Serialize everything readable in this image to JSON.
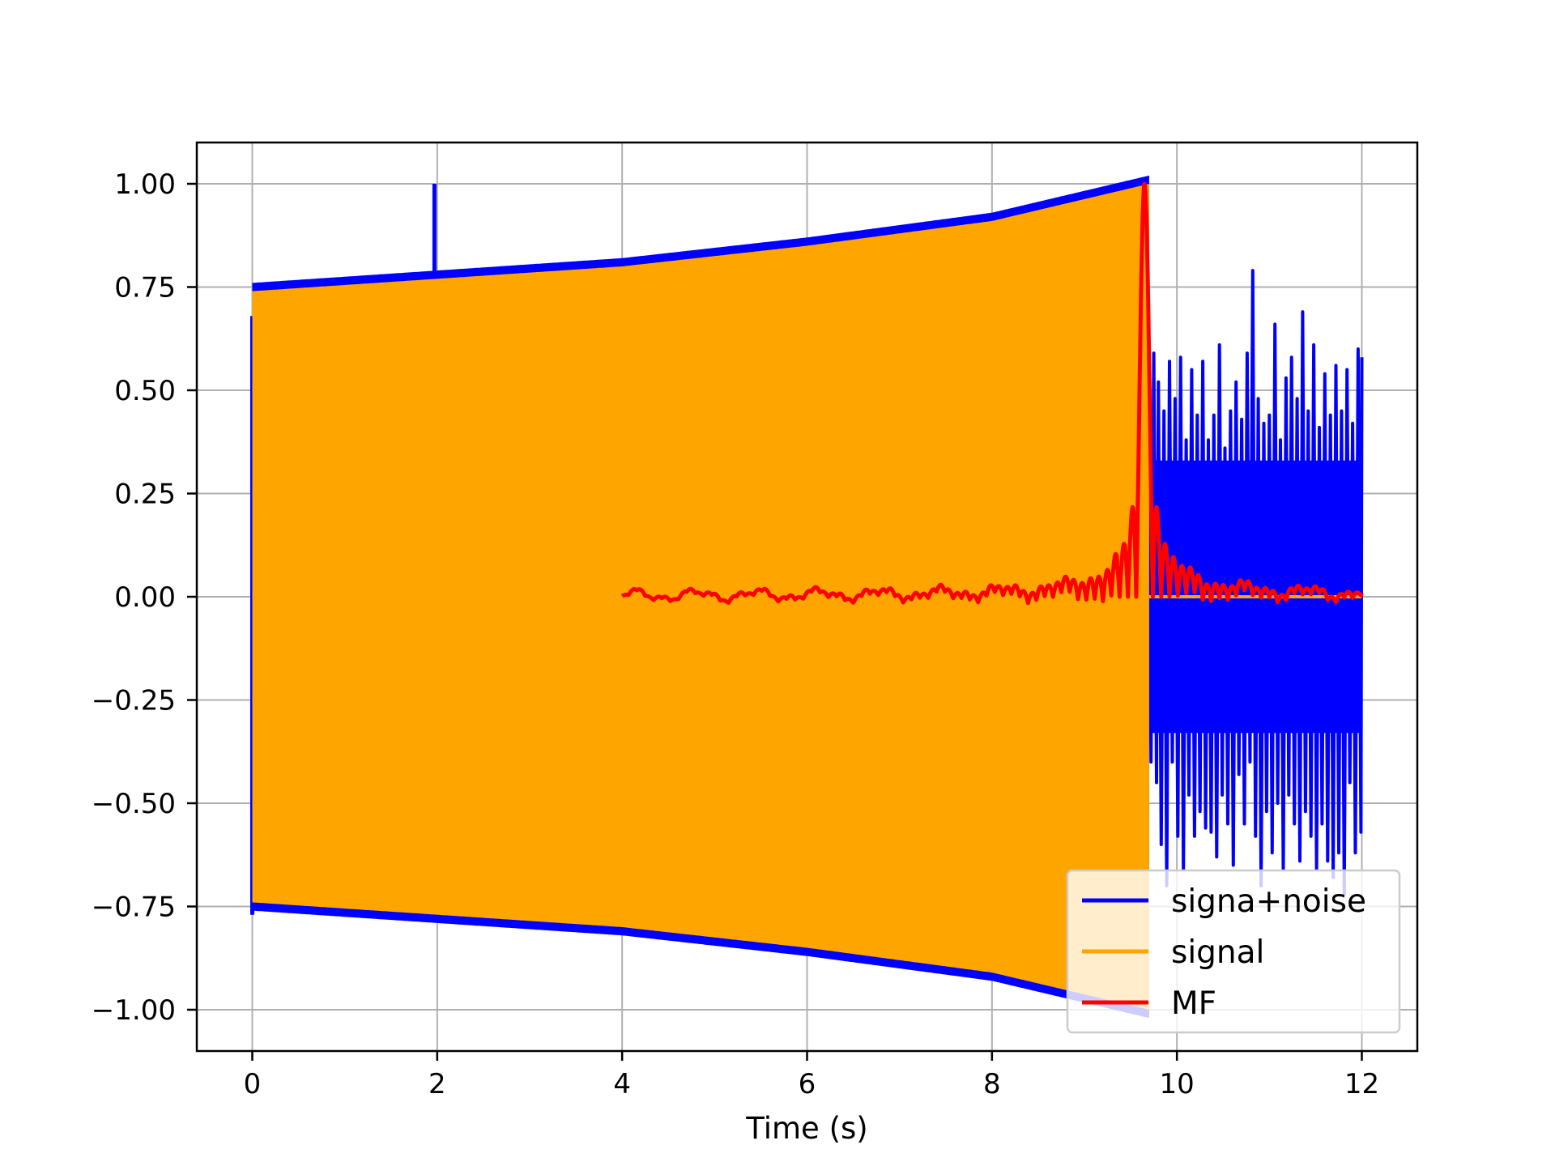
{
  "chart_data": {
    "type": "line",
    "title": "",
    "xlabel": "Time (s)",
    "ylabel": "",
    "xlim": [
      -0.6,
      12.6
    ],
    "ylim": [
      -1.1,
      1.1
    ],
    "grid": true,
    "legend_placement": "lower-right",
    "x_ticks": [
      0,
      2,
      4,
      6,
      8,
      10,
      12
    ],
    "x_tick_labels": [
      "0",
      "2",
      "4",
      "6",
      "8",
      "10",
      "12"
    ],
    "y_ticks": [
      1.0,
      0.75,
      0.5,
      0.25,
      0.0,
      -0.25,
      -0.5,
      -0.75,
      -1.0
    ],
    "y_tick_labels": [
      "1.00",
      "0.75",
      "0.50",
      "0.25",
      "0.00",
      "−0.25",
      "−0.50",
      "−0.75",
      "−1.00"
    ],
    "series": [
      {
        "name": "signa+noise",
        "color": "#0000ff",
        "spikes": [
          {
            "x": 0.0,
            "y": 0.68
          },
          {
            "x": 0.0,
            "y": -0.77
          },
          {
            "x": 1.97,
            "y": 1.0
          },
          {
            "x": 4.45,
            "y": 0.82
          },
          {
            "x": 4.45,
            "y": -0.83
          }
        ],
        "noise_region": {
          "x": [
            9.7,
            12.0
          ],
          "points": [
            [
              9.7,
              0.28
            ],
            [
              9.72,
              -0.4
            ],
            [
              9.75,
              0.59
            ],
            [
              9.78,
              -0.45
            ],
            [
              9.8,
              0.52
            ],
            [
              9.83,
              -0.6
            ],
            [
              9.86,
              0.45
            ],
            [
              9.89,
              -0.7
            ],
            [
              9.92,
              0.57
            ],
            [
              9.95,
              -0.4
            ],
            [
              9.98,
              0.48
            ],
            [
              10.01,
              -0.58
            ],
            [
              10.04,
              0.58
            ],
            [
              10.07,
              -0.66
            ],
            [
              10.1,
              0.38
            ],
            [
              10.13,
              -0.48
            ],
            [
              10.16,
              0.55
            ],
            [
              10.19,
              -0.58
            ],
            [
              10.22,
              0.44
            ],
            [
              10.25,
              -0.52
            ],
            [
              10.28,
              0.57
            ],
            [
              10.31,
              -0.56
            ],
            [
              10.34,
              0.38
            ],
            [
              10.37,
              -0.57
            ],
            [
              10.4,
              0.44
            ],
            [
              10.43,
              -0.63
            ],
            [
              10.46,
              0.61
            ],
            [
              10.49,
              -0.48
            ],
            [
              10.52,
              0.36
            ],
            [
              10.55,
              -0.55
            ],
            [
              10.58,
              0.45
            ],
            [
              10.61,
              -0.65
            ],
            [
              10.64,
              0.52
            ],
            [
              10.67,
              -0.43
            ],
            [
              10.7,
              0.43
            ],
            [
              10.73,
              -0.55
            ],
            [
              10.76,
              0.59
            ],
            [
              10.79,
              -0.4
            ],
            [
              10.82,
              0.79
            ],
            [
              10.85,
              -0.58
            ],
            [
              10.88,
              0.48
            ],
            [
              10.91,
              -0.7
            ],
            [
              10.94,
              0.42
            ],
            [
              10.97,
              -0.52
            ],
            [
              11.0,
              0.44
            ],
            [
              11.03,
              -0.62
            ],
            [
              11.06,
              0.66
            ],
            [
              11.09,
              -0.5
            ],
            [
              11.12,
              0.38
            ],
            [
              11.15,
              -0.66
            ],
            [
              11.18,
              0.53
            ],
            [
              11.21,
              -0.48
            ],
            [
              11.24,
              0.58
            ],
            [
              11.27,
              -0.55
            ],
            [
              11.3,
              0.48
            ],
            [
              11.33,
              -0.64
            ],
            [
              11.36,
              0.69
            ],
            [
              11.39,
              -0.52
            ],
            [
              11.42,
              0.45
            ],
            [
              11.45,
              -0.58
            ],
            [
              11.48,
              0.61
            ],
            [
              11.51,
              -0.66
            ],
            [
              11.54,
              0.41
            ],
            [
              11.57,
              -0.55
            ],
            [
              11.6,
              0.54
            ],
            [
              11.63,
              -0.64
            ],
            [
              11.66,
              0.44
            ],
            [
              11.69,
              -0.68
            ],
            [
              11.72,
              0.56
            ],
            [
              11.75,
              -0.62
            ],
            [
              11.78,
              0.45
            ],
            [
              11.81,
              -0.72
            ],
            [
              11.84,
              0.55
            ],
            [
              11.87,
              -0.45
            ],
            [
              11.9,
              0.42
            ],
            [
              11.93,
              -0.62
            ],
            [
              11.96,
              0.6
            ],
            [
              11.99,
              -0.57
            ],
            [
              12.0,
              0.58
            ]
          ]
        }
      },
      {
        "name": "signal",
        "color": "#ffa500",
        "envelope": [
          {
            "x": 0.0,
            "amplitude": 0.74
          },
          {
            "x": 2.0,
            "amplitude": 0.77
          },
          {
            "x": 4.0,
            "amplitude": 0.8
          },
          {
            "x": 6.0,
            "amplitude": 0.85
          },
          {
            "x": 8.0,
            "amplitude": 0.91
          },
          {
            "x": 9.7,
            "amplitude": 1.0
          }
        ],
        "end_x": 9.7,
        "after_end_value": 0.0,
        "after_end_until": 12.0
      },
      {
        "name": "MF",
        "color": "#ff0000",
        "x_range": [
          4.0,
          12.0
        ],
        "peak_x": 9.65,
        "peak_y": 1.0
      }
    ]
  }
}
